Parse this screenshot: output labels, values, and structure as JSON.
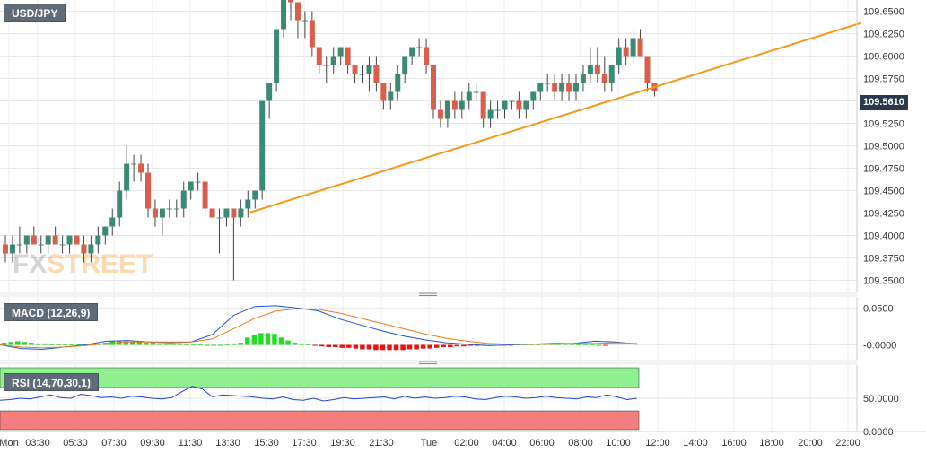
{
  "symbol": "USD/JPY",
  "current_price": "109.5610",
  "price_axis": [
    "109.6500",
    "109.6250",
    "109.6000",
    "109.5750",
    "109.5500",
    "109.5250",
    "109.5000",
    "109.4750",
    "109.4500",
    "109.4250",
    "109.4000",
    "109.3750",
    "109.3500"
  ],
  "time_axis": [
    "Mon",
    "03:30",
    "05:30",
    "07:30",
    "09:30",
    "11:30",
    "13:30",
    "15:30",
    "17:30",
    "19:30",
    "21:30",
    "Tue",
    "02:00",
    "04:00",
    "06:00",
    "08:00",
    "10:00",
    "12:00",
    "14:00",
    "16:00",
    "18:00",
    "20:00",
    "22:00"
  ],
  "macd": {
    "label": "MACD (12,26,9)",
    "axis": [
      "0.0500",
      "-0.0000"
    ]
  },
  "rsi": {
    "label": "RSI (14,70,30,1)",
    "axis": [
      "50.0000",
      "0.0000"
    ]
  },
  "watermark": {
    "fx": "FX",
    "street": "STREET"
  },
  "colors": {
    "bull": "#3a8a76",
    "bear": "#d95f4b",
    "trend": "#f39a1c",
    "macd_line": "#2255cc",
    "signal_line": "#f07a1a",
    "hist_pos": "#22dd22",
    "hist_neg": "#ee1111",
    "rsi_line": "#2244cc",
    "rsi_upper": "#8ef08e",
    "rsi_lower": "#f47e7e",
    "price_line": "#2b3a4a"
  },
  "chart_data": {
    "type": "candlestick",
    "title": "USD/JPY",
    "ylim": [
      109.34,
      109.67
    ],
    "candles": [
      [
        109.39,
        109.4,
        109.37,
        109.38
      ],
      [
        109.38,
        109.4,
        109.37,
        109.39
      ],
      [
        109.39,
        109.41,
        109.38,
        109.39
      ],
      [
        109.39,
        109.4,
        109.38,
        109.4
      ],
      [
        109.4,
        109.41,
        109.39,
        109.39
      ],
      [
        109.39,
        109.4,
        109.38,
        109.39
      ],
      [
        109.39,
        109.4,
        109.38,
        109.4
      ],
      [
        109.4,
        109.41,
        109.39,
        109.39
      ],
      [
        109.39,
        109.4,
        109.38,
        109.39
      ],
      [
        109.39,
        109.4,
        109.38,
        109.4
      ],
      [
        109.4,
        109.4,
        109.39,
        109.39
      ],
      [
        109.39,
        109.4,
        109.37,
        109.38
      ],
      [
        109.38,
        109.4,
        109.37,
        109.39
      ],
      [
        109.39,
        109.41,
        109.38,
        109.4
      ],
      [
        109.4,
        109.41,
        109.39,
        109.41
      ],
      [
        109.41,
        109.43,
        109.4,
        109.42
      ],
      [
        109.42,
        109.46,
        109.41,
        109.45
      ],
      [
        109.45,
        109.5,
        109.44,
        109.48
      ],
      [
        109.48,
        109.49,
        109.46,
        109.48
      ],
      [
        109.48,
        109.49,
        109.46,
        109.47
      ],
      [
        109.47,
        109.48,
        109.42,
        109.43
      ],
      [
        109.43,
        109.44,
        109.41,
        109.42
      ],
      [
        109.42,
        109.43,
        109.4,
        109.43
      ],
      [
        109.43,
        109.44,
        109.42,
        109.43
      ],
      [
        109.43,
        109.44,
        109.42,
        109.43
      ],
      [
        109.43,
        109.46,
        109.42,
        109.45
      ],
      [
        109.45,
        109.46,
        109.44,
        109.46
      ],
      [
        109.46,
        109.47,
        109.45,
        109.46
      ],
      [
        109.46,
        109.46,
        109.42,
        109.43
      ],
      [
        109.43,
        109.43,
        109.42,
        109.42
      ],
      [
        109.42,
        109.43,
        109.38,
        109.42
      ],
      [
        109.42,
        109.43,
        109.41,
        109.43
      ],
      [
        109.43,
        109.43,
        109.35,
        109.42
      ],
      [
        109.42,
        109.44,
        109.41,
        109.43
      ],
      [
        109.43,
        109.45,
        109.42,
        109.44
      ],
      [
        109.44,
        109.45,
        109.43,
        109.45
      ],
      [
        109.45,
        109.55,
        109.44,
        109.55
      ],
      [
        109.55,
        109.57,
        109.53,
        109.57
      ],
      [
        109.57,
        109.63,
        109.56,
        109.63
      ],
      [
        109.63,
        109.67,
        109.62,
        109.67
      ],
      [
        109.67,
        109.67,
        109.64,
        109.66
      ],
      [
        109.66,
        109.66,
        109.62,
        109.64
      ],
      [
        109.64,
        109.65,
        109.62,
        109.64
      ],
      [
        109.64,
        109.65,
        109.6,
        109.61
      ],
      [
        109.61,
        109.61,
        109.58,
        109.59
      ],
      [
        109.59,
        109.6,
        109.57,
        109.59
      ],
      [
        109.59,
        109.61,
        109.58,
        109.6
      ],
      [
        109.6,
        109.61,
        109.59,
        109.61
      ],
      [
        109.61,
        109.61,
        109.58,
        109.59
      ],
      [
        109.59,
        109.59,
        109.57,
        109.58
      ],
      [
        109.58,
        109.59,
        109.57,
        109.58
      ],
      [
        109.58,
        109.6,
        109.56,
        109.59
      ],
      [
        109.59,
        109.6,
        109.56,
        109.57
      ],
      [
        109.57,
        109.57,
        109.54,
        109.55
      ],
      [
        109.55,
        109.57,
        109.54,
        109.56
      ],
      [
        109.56,
        109.59,
        109.55,
        109.58
      ],
      [
        109.58,
        109.6,
        109.57,
        109.6
      ],
      [
        109.6,
        109.61,
        109.59,
        109.61
      ],
      [
        109.61,
        109.62,
        109.6,
        109.61
      ],
      [
        109.61,
        109.62,
        109.58,
        109.59
      ],
      [
        109.59,
        109.59,
        109.53,
        109.54
      ],
      [
        109.54,
        109.55,
        109.52,
        109.53
      ],
      [
        109.53,
        109.55,
        109.52,
        109.55
      ],
      [
        109.55,
        109.56,
        109.53,
        109.54
      ],
      [
        109.54,
        109.56,
        109.53,
        109.55
      ],
      [
        109.55,
        109.57,
        109.54,
        109.56
      ],
      [
        109.56,
        109.57,
        109.55,
        109.56
      ],
      [
        109.56,
        109.56,
        109.52,
        109.53
      ],
      [
        109.53,
        109.55,
        109.52,
        109.54
      ],
      [
        109.54,
        109.55,
        109.53,
        109.54
      ],
      [
        109.54,
        109.55,
        109.53,
        109.55
      ],
      [
        109.55,
        109.55,
        109.54,
        109.55
      ],
      [
        109.55,
        109.56,
        109.53,
        109.54
      ],
      [
        109.54,
        109.55,
        109.53,
        109.55
      ],
      [
        109.55,
        109.56,
        109.54,
        109.56
      ],
      [
        109.56,
        109.57,
        109.55,
        109.57
      ],
      [
        109.57,
        109.58,
        109.56,
        109.57
      ],
      [
        109.57,
        109.58,
        109.55,
        109.56
      ],
      [
        109.56,
        109.58,
        109.55,
        109.57
      ],
      [
        109.57,
        109.58,
        109.55,
        109.56
      ],
      [
        109.56,
        109.58,
        109.55,
        109.57
      ],
      [
        109.57,
        109.59,
        109.56,
        109.58
      ],
      [
        109.58,
        109.61,
        109.57,
        109.59
      ],
      [
        109.59,
        109.61,
        109.57,
        109.58
      ],
      [
        109.58,
        109.6,
        109.56,
        109.57
      ],
      [
        109.57,
        109.59,
        109.56,
        109.59
      ],
      [
        109.59,
        109.62,
        109.58,
        109.61
      ],
      [
        109.61,
        109.62,
        109.59,
        109.6
      ],
      [
        109.6,
        109.63,
        109.59,
        109.62
      ],
      [
        109.62,
        109.63,
        109.6,
        109.6
      ],
      [
        109.6,
        109.6,
        109.56,
        109.57
      ],
      [
        109.57,
        109.57,
        109.555,
        109.561
      ]
    ],
    "trendline": {
      "from": {
        "index": 34,
        "price": 109.425
      },
      "to": {
        "index": 120,
        "price": 109.637
      }
    },
    "macd_hist": [
      0.003,
      0.004,
      0.005,
      0.004,
      0.003,
      0.002,
      0.002,
      0.001,
      0.001,
      0.001,
      0.001,
      0.001,
      0.001,
      0.001,
      0.002,
      0.003,
      0.005,
      0.006,
      0.005,
      0.004,
      0.004,
      0.003,
      0.003,
      0.002,
      0.002,
      0.002,
      0.002,
      0.001,
      0.001,
      0.001,
      0.0,
      0.0,
      0.0,
      0.001,
      0.002,
      0.003,
      0.01,
      0.014,
      0.016,
      0.016,
      0.015,
      0.01,
      0.006,
      0.003,
      0.002,
      0.001,
      -0.001,
      -0.002,
      -0.003,
      -0.003,
      -0.004,
      -0.004,
      -0.005,
      -0.006,
      -0.006,
      -0.007,
      -0.007,
      -0.007,
      -0.007,
      -0.007,
      -0.006,
      -0.006,
      -0.005,
      -0.005,
      -0.004,
      -0.003,
      -0.003,
      -0.002,
      -0.002,
      -0.001,
      -0.001,
      -0.001,
      0.0,
      0.0,
      0.0,
      0.0,
      0.001,
      0.001,
      0.001,
      0.001,
      0.002,
      0.002,
      0.002,
      0.002,
      0.002,
      0.001,
      0.001,
      0.001,
      0.0,
      -0.001
    ],
    "macd_line": [
      0.0,
      -0.005,
      -0.006,
      -0.003,
      0.0,
      0.005,
      0.006,
      0.004,
      0.003,
      0.004,
      0.014,
      0.04,
      0.052,
      0.053,
      0.05,
      0.046,
      0.035,
      0.027,
      0.019,
      0.012,
      0.007,
      0.003,
      0.001,
      -0.001,
      0.0,
      0.001,
      0.002,
      0.002,
      0.005,
      0.004,
      0.001
    ],
    "signal_line": [
      0.0,
      -0.003,
      -0.004,
      -0.003,
      -0.001,
      0.002,
      0.004,
      0.004,
      0.004,
      0.004,
      0.008,
      0.022,
      0.036,
      0.046,
      0.049,
      0.048,
      0.043,
      0.036,
      0.029,
      0.022,
      0.015,
      0.009,
      0.005,
      0.002,
      0.001,
      0.001,
      0.001,
      0.002,
      0.002,
      0.003,
      0.002
    ],
    "rsi": [
      47,
      48,
      50,
      49,
      52,
      55,
      51,
      50,
      56,
      54,
      51,
      52,
      50,
      53,
      52,
      50,
      49,
      51,
      60,
      68,
      64,
      52,
      55,
      54,
      53,
      52,
      50,
      49,
      52,
      48,
      47,
      50,
      46,
      48,
      51,
      49,
      50,
      51,
      52,
      49,
      53,
      50,
      52,
      50,
      51,
      53,
      52,
      49,
      48,
      51,
      53,
      52,
      50,
      51,
      53,
      51,
      50,
      49,
      52,
      51,
      55,
      52,
      48,
      50
    ]
  }
}
